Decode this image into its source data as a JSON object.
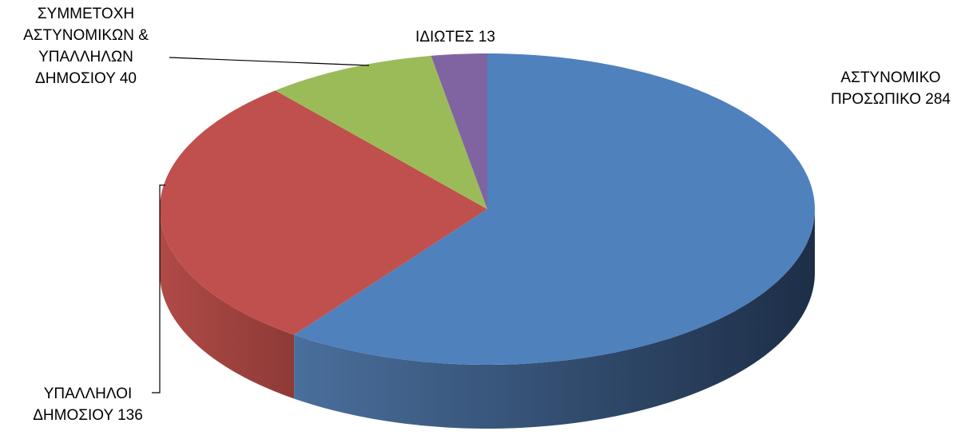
{
  "chart_data": {
    "type": "pie3d",
    "categories": [
      "ΑΣΤΥΝΟΜΙΚΟ ΠΡΟΣΩΠΙΚΟ",
      "ΥΠΑΛΛΗΛΟΙ ΔΗΜΟΣΙΟΥ",
      "ΣΥΜΜΕΤΟΧΗ ΑΣΤΥΝΟΜΙΚΩΝ & ΥΠΑΛΛΗΛΩΝ ΔΗΜΟΣΙΟΥ",
      "ΙΔΙΩΤΕΣ"
    ],
    "values": [
      284,
      136,
      40,
      13
    ],
    "colors": [
      "#4f81bd",
      "#c0504d",
      "#9bbb59",
      "#8064a2"
    ]
  }
}
